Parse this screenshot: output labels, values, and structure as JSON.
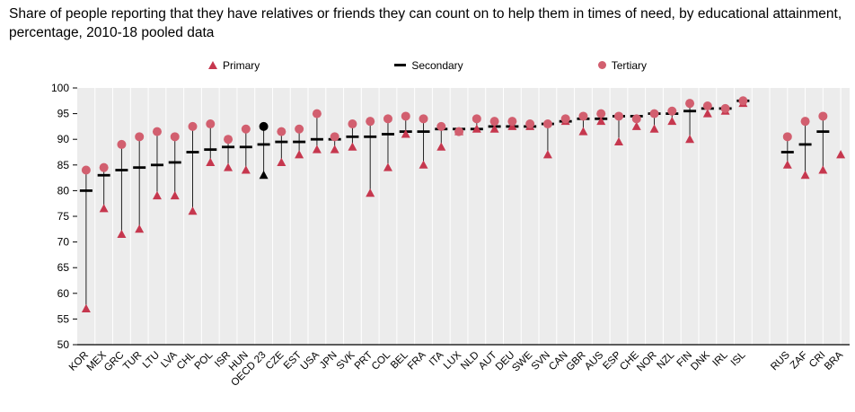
{
  "title": {
    "text": "Share of people reporting that they have relatives or friends they can count on to help them in times of need, by educational attainment, percentage, 2010-18 pooled data"
  },
  "legend": [
    {
      "label": "Primary",
      "marker": "triangle-icon",
      "color": "#c6374e"
    },
    {
      "label": "Secondary",
      "marker": "dash-icon",
      "color": "#000000"
    },
    {
      "label": "Tertiary",
      "marker": "circle-icon",
      "color": "#d25f6f"
    }
  ],
  "chart_data": {
    "type": "scatter",
    "title": "Share of people reporting that they have relatives or friends they can count on to help them in times of need, by educational attainment, percentage, 2010-18 pooled data",
    "xlabel": "",
    "ylabel": "",
    "ylim": [
      50,
      100
    ],
    "ytick_step": 5,
    "grid": "vertical-white-on-gray",
    "legend_position": "top",
    "series_names": [
      "Primary",
      "Secondary",
      "Tertiary"
    ],
    "colors": {
      "primary": "#c6374e",
      "secondary": "#000000",
      "tertiary": "#d25f6f",
      "highlight": "#000000",
      "plot_bg": "#ececec",
      "gridline": "#ffffff"
    },
    "points": [
      {
        "label": "KOR",
        "primary": 57,
        "secondary": 80,
        "tertiary": 84
      },
      {
        "label": "MEX",
        "primary": 76.5,
        "secondary": 83,
        "tertiary": 84.5
      },
      {
        "label": "GRC",
        "primary": 71.5,
        "secondary": 84,
        "tertiary": 89
      },
      {
        "label": "TUR",
        "primary": 72.5,
        "secondary": 84.5,
        "tertiary": 90.5
      },
      {
        "label": "LTU",
        "primary": 79,
        "secondary": 85,
        "tertiary": 91.5
      },
      {
        "label": "LVA",
        "primary": 79,
        "secondary": 85.5,
        "tertiary": 90.5
      },
      {
        "label": "CHL",
        "primary": 76,
        "secondary": 87.5,
        "tertiary": 92.5
      },
      {
        "label": "POL",
        "primary": 85.5,
        "secondary": 88,
        "tertiary": 93
      },
      {
        "label": "ISR",
        "primary": 84.5,
        "secondary": 88.5,
        "tertiary": 90
      },
      {
        "label": "HUN",
        "primary": 84,
        "secondary": 88.5,
        "tertiary": 92
      },
      {
        "label": "OECD 23",
        "primary": 83,
        "secondary": 89,
        "tertiary": 92.5,
        "highlight": true
      },
      {
        "label": "CZE",
        "primary": 85.5,
        "secondary": 89.5,
        "tertiary": 91.5
      },
      {
        "label": "EST",
        "primary": 87,
        "secondary": 89.5,
        "tertiary": 92
      },
      {
        "label": "USA",
        "primary": 88,
        "secondary": 90,
        "tertiary": 95
      },
      {
        "label": "JPN",
        "primary": 88,
        "secondary": 90,
        "tertiary": 90.5
      },
      {
        "label": "SVK",
        "primary": 88.5,
        "secondary": 90.5,
        "tertiary": 93
      },
      {
        "label": "PRT",
        "primary": 79.5,
        "secondary": 90.5,
        "tertiary": 93.5
      },
      {
        "label": "COL",
        "primary": 84.5,
        "secondary": 91,
        "tertiary": 94
      },
      {
        "label": "BEL",
        "primary": 91,
        "secondary": 91.5,
        "tertiary": 94.5
      },
      {
        "label": "FRA",
        "primary": 85,
        "secondary": 91.5,
        "tertiary": 94
      },
      {
        "label": "ITA",
        "primary": 88.5,
        "secondary": 92,
        "tertiary": 92.5
      },
      {
        "label": "LUX",
        "primary": 91.5,
        "secondary": 92,
        "tertiary": 91.5
      },
      {
        "label": "NLD",
        "primary": 92,
        "secondary": 92,
        "tertiary": 94
      },
      {
        "label": "AUT",
        "primary": 92,
        "secondary": 92.5,
        "tertiary": 93.5
      },
      {
        "label": "DEU",
        "primary": 92.5,
        "secondary": 92.5,
        "tertiary": 93.5
      },
      {
        "label": "SWE",
        "primary": 92.5,
        "secondary": 92.5,
        "tertiary": 93
      },
      {
        "label": "SVN",
        "primary": 87,
        "secondary": 93,
        "tertiary": 93
      },
      {
        "label": "CAN",
        "primary": 93.5,
        "secondary": 93.5,
        "tertiary": 94
      },
      {
        "label": "GBR",
        "primary": 91.5,
        "secondary": 94,
        "tertiary": 94.5
      },
      {
        "label": "AUS",
        "primary": 93.5,
        "secondary": 94,
        "tertiary": 95
      },
      {
        "label": "ESP",
        "primary": 89.5,
        "secondary": 94.5,
        "tertiary": 94.5
      },
      {
        "label": "CHE",
        "primary": 92.5,
        "secondary": 94.5,
        "tertiary": 94
      },
      {
        "label": "NOR",
        "primary": 92,
        "secondary": 95,
        "tertiary": 95
      },
      {
        "label": "NZL",
        "primary": 93.5,
        "secondary": 95,
        "tertiary": 95.5
      },
      {
        "label": "FIN",
        "primary": 90,
        "secondary": 95.5,
        "tertiary": 97
      },
      {
        "label": "DNK",
        "primary": 95,
        "secondary": 96,
        "tertiary": 96.5
      },
      {
        "label": "IRL",
        "primary": 95.5,
        "secondary": 96,
        "tertiary": 96
      },
      {
        "label": "ISL",
        "primary": 97,
        "secondary": 97.5,
        "tertiary": 97.5
      },
      {
        "label": "RUS",
        "primary": 85,
        "secondary": 87.5,
        "tertiary": 90.5,
        "gap_before": true
      },
      {
        "label": "ZAF",
        "primary": 83,
        "secondary": 89,
        "tertiary": 93.5
      },
      {
        "label": "CRI",
        "primary": 84,
        "secondary": 91.5,
        "tertiary": 94.5
      },
      {
        "label": "BRA",
        "primary": 87,
        "secondary": null,
        "tertiary": null
      }
    ]
  }
}
